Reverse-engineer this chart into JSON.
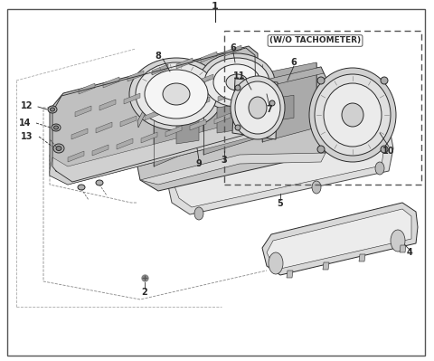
{
  "bg_color": "#ffffff",
  "border_color": "#333333",
  "fig_width": 4.8,
  "fig_height": 3.99,
  "dpi": 100,
  "wo_tach_label": "(W/O TACHOMETER)",
  "line_color": "#2a2a2a",
  "fill_light": "#e8e8e8",
  "fill_mid": "#d0d0d0",
  "fill_dark": "#b0b0b0",
  "fill_darker": "#909090"
}
